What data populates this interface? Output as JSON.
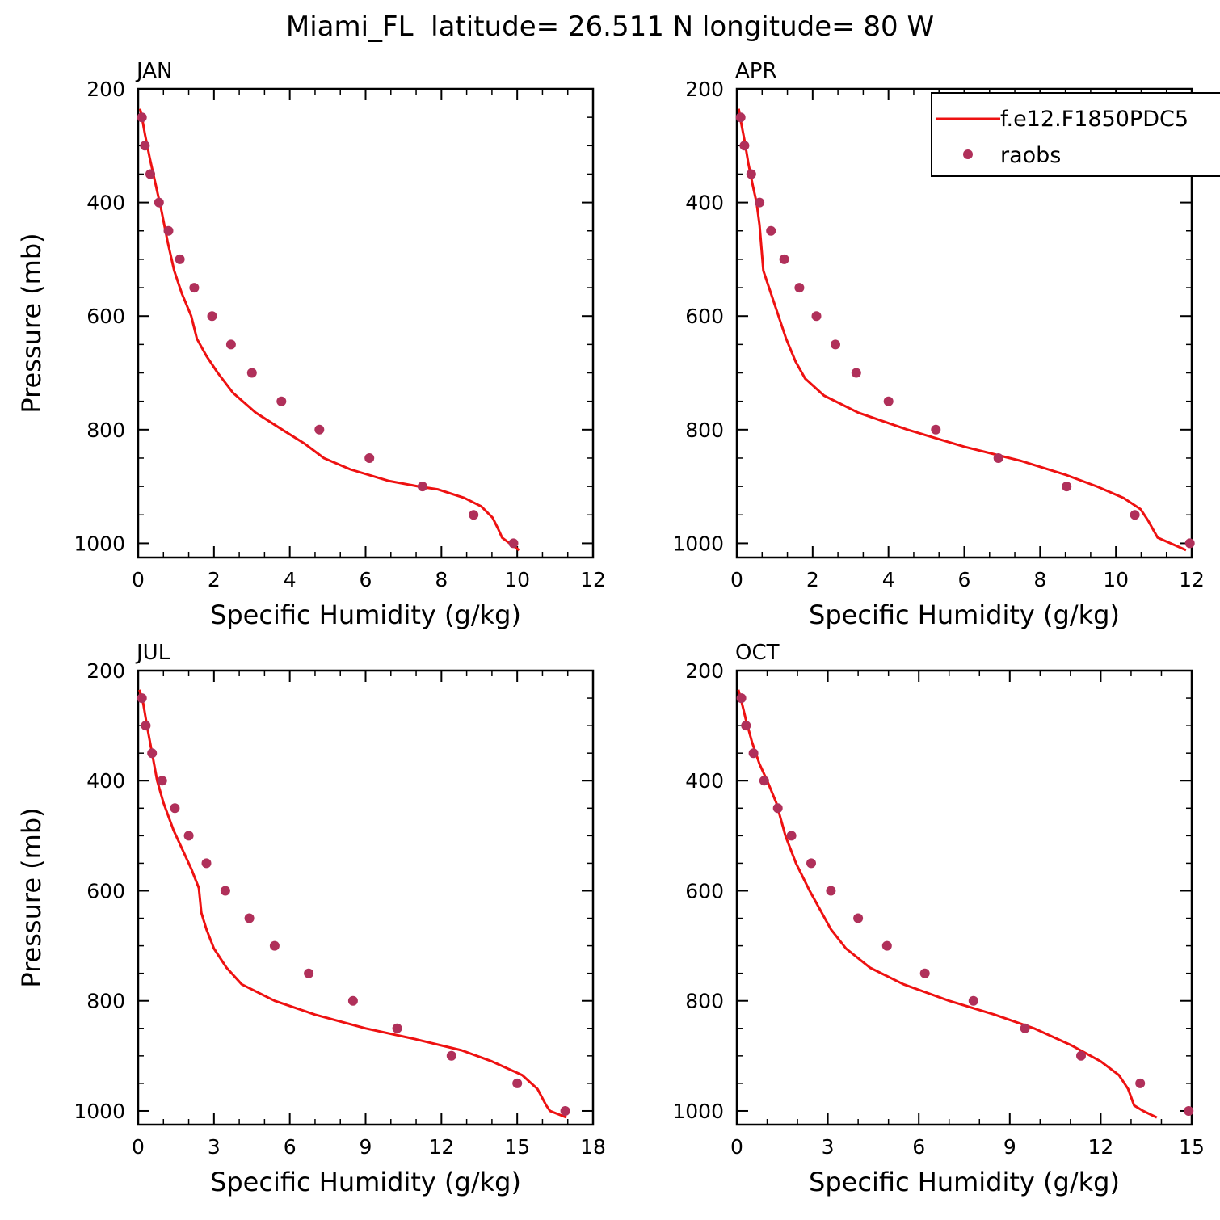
{
  "title": "Miami_FL  latitude= 26.511 N longitude= 80 W",
  "colors": {
    "model": "#ee1111",
    "obs": "#b0305a",
    "axis": "#000000"
  },
  "legend": {
    "placement": "top-right",
    "model_label": "f.e12.F1850PDC5",
    "obs_label": "raobs"
  },
  "chart_data": [
    {
      "type": "line",
      "panel_label": "JAN",
      "xlabel": "Specific Humidity (g/kg)",
      "ylabel": "Pressure (mb)",
      "xlim": [
        0,
        12
      ],
      "ylim": [
        1025,
        200
      ],
      "y_inverted": true,
      "xticks": [
        0,
        2,
        4,
        6,
        8,
        10,
        12
      ],
      "yticks": [
        200,
        400,
        600,
        800,
        1000
      ],
      "series": [
        {
          "name": "f.e12.F1850PDC5",
          "kind": "line",
          "x": [
            0.05,
            0.1,
            0.18,
            0.3,
            0.45,
            0.6,
            0.78,
            0.95,
            1.15,
            1.4,
            1.55,
            1.8,
            2.1,
            2.5,
            3.1,
            3.8,
            4.4,
            4.9,
            5.6,
            6.6,
            7.4,
            7.9,
            8.6,
            9.05,
            9.35,
            9.5,
            9.6,
            9.8,
            10.05
          ],
          "y": [
            235,
            250,
            280,
            320,
            365,
            410,
            470,
            520,
            560,
            600,
            640,
            670,
            700,
            735,
            770,
            800,
            825,
            850,
            870,
            890,
            900,
            905,
            920,
            935,
            955,
            975,
            990,
            1000,
            1012
          ]
        },
        {
          "name": "raobs",
          "kind": "scatter",
          "x": [
            0.1,
            0.18,
            0.32,
            0.55,
            0.8,
            1.1,
            1.48,
            1.95,
            2.45,
            3.0,
            3.78,
            4.78,
            6.1,
            7.5,
            8.85,
            9.9
          ],
          "y": [
            250,
            300,
            350,
            400,
            450,
            500,
            550,
            600,
            650,
            700,
            750,
            800,
            850,
            900,
            950,
            1000
          ]
        }
      ]
    },
    {
      "type": "line",
      "panel_label": "APR",
      "xlabel": "Specific Humidity (g/kg)",
      "ylabel": "",
      "xlim": [
        0,
        12
      ],
      "ylim": [
        1025,
        200
      ],
      "y_inverted": true,
      "xticks": [
        0,
        2,
        4,
        6,
        8,
        10,
        12
      ],
      "yticks": [
        200,
        400,
        600,
        800,
        1000
      ],
      "series": [
        {
          "name": "f.e12.F1850PDC5",
          "kind": "line",
          "x": [
            0.05,
            0.1,
            0.2,
            0.3,
            0.42,
            0.52,
            0.6,
            0.7,
            0.9,
            1.1,
            1.3,
            1.55,
            1.8,
            2.3,
            3.2,
            4.5,
            6.0,
            7.5,
            8.7,
            9.5,
            10.2,
            10.65,
            10.85,
            11.1,
            11.85
          ],
          "y": [
            235,
            255,
            290,
            330,
            370,
            400,
            440,
            520,
            560,
            600,
            640,
            680,
            710,
            740,
            770,
            800,
            830,
            855,
            880,
            900,
            920,
            940,
            960,
            990,
            1012
          ]
        },
        {
          "name": "raobs",
          "kind": "scatter",
          "x": [
            0.1,
            0.2,
            0.38,
            0.6,
            0.9,
            1.25,
            1.65,
            2.1,
            2.6,
            3.15,
            4.0,
            5.25,
            6.9,
            8.7,
            10.5,
            11.95
          ],
          "y": [
            250,
            300,
            350,
            400,
            450,
            500,
            550,
            600,
            650,
            700,
            750,
            800,
            850,
            900,
            950,
            1000
          ]
        }
      ]
    },
    {
      "type": "line",
      "panel_label": "JUL",
      "xlabel": "Specific Humidity (g/kg)",
      "ylabel": "Pressure (mb)",
      "xlim": [
        0,
        18
      ],
      "ylim": [
        1025,
        200
      ],
      "y_inverted": true,
      "xticks": [
        0,
        3,
        6,
        9,
        12,
        15,
        18
      ],
      "yticks": [
        200,
        400,
        600,
        800,
        1000
      ],
      "series": [
        {
          "name": "f.e12.F1850PDC5",
          "kind": "line",
          "x": [
            0.05,
            0.2,
            0.35,
            0.55,
            0.75,
            1.0,
            1.4,
            1.8,
            2.1,
            2.4,
            2.5,
            2.7,
            3.0,
            3.5,
            4.1,
            5.4,
            7.0,
            9.0,
            11.0,
            12.8,
            14.0,
            15.2,
            15.8,
            16.15,
            16.3,
            16.95
          ],
          "y": [
            235,
            260,
            300,
            350,
            400,
            440,
            490,
            530,
            560,
            595,
            640,
            670,
            705,
            740,
            770,
            800,
            825,
            850,
            870,
            890,
            910,
            935,
            960,
            990,
            1000,
            1012
          ]
        },
        {
          "name": "raobs",
          "kind": "scatter",
          "x": [
            0.15,
            0.3,
            0.55,
            0.95,
            1.45,
            2.0,
            2.7,
            3.45,
            4.4,
            5.4,
            6.75,
            8.5,
            10.25,
            12.4,
            15.0,
            16.9
          ],
          "y": [
            250,
            300,
            350,
            400,
            450,
            500,
            550,
            600,
            650,
            700,
            750,
            800,
            850,
            900,
            950,
            1000
          ]
        }
      ]
    },
    {
      "type": "line",
      "panel_label": "OCT",
      "xlabel": "Specific Humidity (g/kg)",
      "ylabel": "",
      "xlim": [
        0,
        15
      ],
      "ylim": [
        1025,
        200
      ],
      "y_inverted": true,
      "xticks": [
        0,
        3,
        6,
        9,
        12,
        15
      ],
      "yticks": [
        200,
        400,
        600,
        800,
        1000
      ],
      "series": [
        {
          "name": "f.e12.F1850PDC5",
          "kind": "line",
          "x": [
            0.05,
            0.15,
            0.3,
            0.5,
            0.75,
            1.0,
            1.3,
            1.6,
            1.95,
            2.4,
            2.8,
            3.1,
            3.6,
            4.4,
            5.5,
            7.0,
            8.5,
            9.8,
            11.0,
            12.0,
            12.6,
            12.9,
            13.1,
            13.4,
            13.85
          ],
          "y": [
            235,
            255,
            290,
            330,
            370,
            400,
            440,
            500,
            550,
            600,
            640,
            670,
            705,
            740,
            770,
            800,
            825,
            850,
            880,
            910,
            935,
            960,
            990,
            1000,
            1012
          ]
        },
        {
          "name": "raobs",
          "kind": "scatter",
          "x": [
            0.15,
            0.3,
            0.55,
            0.9,
            1.35,
            1.8,
            2.45,
            3.1,
            4.0,
            4.95,
            6.2,
            7.8,
            9.5,
            11.35,
            13.3,
            14.9
          ],
          "y": [
            250,
            300,
            350,
            400,
            450,
            500,
            550,
            600,
            650,
            700,
            750,
            800,
            850,
            900,
            950,
            1000
          ]
        }
      ]
    }
  ]
}
